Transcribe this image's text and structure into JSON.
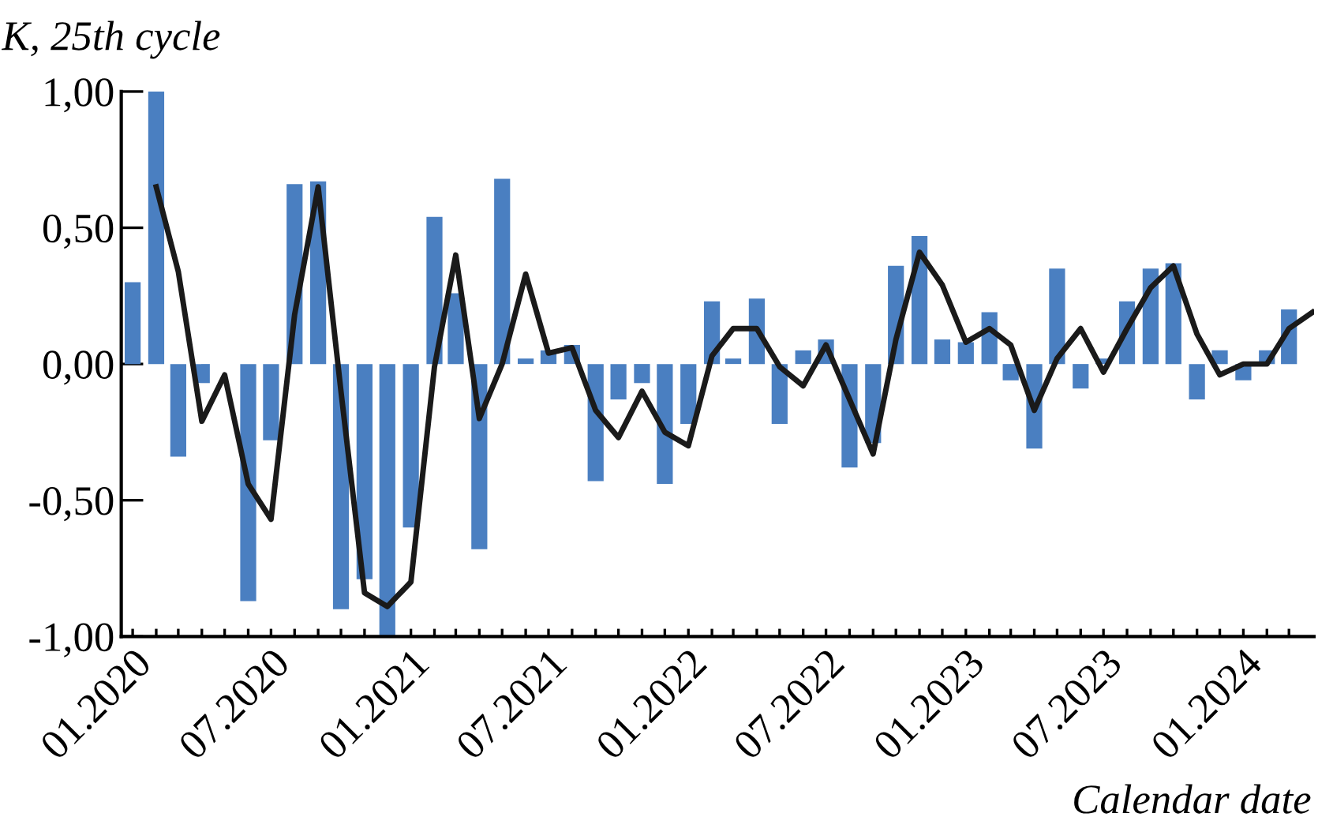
{
  "chart_data": {
    "type": "bar",
    "ylabel": "K, 25th cycle",
    "xlabel": "Calendar date",
    "x": [
      "2020-01",
      "2020-02",
      "2020-03",
      "2020-04",
      "2020-05",
      "2020-06",
      "2020-07",
      "2020-08",
      "2020-09",
      "2020-10",
      "2020-11",
      "2020-12",
      "2021-01",
      "2021-02",
      "2021-03",
      "2021-04",
      "2021-05",
      "2021-06",
      "2021-07",
      "2021-08",
      "2021-09",
      "2021-10",
      "2021-11",
      "2021-12",
      "2022-01",
      "2022-02",
      "2022-03",
      "2022-04",
      "2022-05",
      "2022-06",
      "2022-07",
      "2022-08",
      "2022-09",
      "2022-10",
      "2022-11",
      "2022-12",
      "2023-01",
      "2023-02",
      "2023-03",
      "2023-04",
      "2023-05",
      "2023-06",
      "2023-07",
      "2023-08",
      "2023-09",
      "2023-10",
      "2023-11",
      "2023-12",
      "2024-01",
      "2024-02",
      "2024-03",
      "2024-04"
    ],
    "series": [
      {
        "color": "#4a7fc1",
        "values": [
          0.3,
          1.0,
          -0.34,
          -0.07,
          0,
          -0.87,
          -0.28,
          0.66,
          0.67,
          -0.9,
          -0.79,
          -1.0,
          -0.6,
          0.54,
          0.26,
          -0.68,
          0.68,
          0.02,
          0.05,
          0.07,
          -0.43,
          -0.13,
          -0.07,
          -0.44,
          -0.22,
          0.23,
          0.02,
          0.24,
          -0.22,
          0.05,
          0.09,
          -0.38,
          -0.29,
          0.36,
          0.47,
          0.09,
          0.08,
          0.19,
          -0.06,
          -0.31,
          0.35,
          -0.09,
          0.02,
          0.23,
          0.35,
          0.37,
          -0.13,
          0.05,
          -0.06,
          0.05,
          0.2,
          null
        ]
      },
      {
        "type": "line",
        "color": "#1a1a1a",
        "values": [
          null,
          0.65,
          0.34,
          -0.21,
          -0.04,
          -0.44,
          -0.57,
          0.18,
          0.65,
          -0.1,
          -0.84,
          -0.89,
          -0.8,
          -0.01,
          0.4,
          -0.2,
          0.0,
          0.33,
          0.04,
          0.06,
          -0.17,
          -0.27,
          -0.1,
          -0.25,
          -0.3,
          0.03,
          0.13,
          0.13,
          -0.01,
          -0.08,
          0.07,
          -0.13,
          -0.33,
          0.09,
          0.41,
          0.29,
          0.08,
          0.13,
          0.07,
          -0.17,
          0.02,
          0.13,
          -0.03,
          0.13,
          0.28,
          0.36,
          0.11,
          -0.04,
          0.0,
          0.0,
          0.13,
          0.19
        ]
      }
    ],
    "xlim": [
      "2019-12-17",
      "2024-04-03"
    ],
    "xticks": [
      {
        "value": "2020-01",
        "label": "01.2020"
      },
      {
        "value": "2020-02",
        "label": null
      },
      {
        "value": "2020-03",
        "label": null
      },
      {
        "value": "2020-04",
        "label": null
      },
      {
        "value": "2020-05",
        "label": null
      },
      {
        "value": "2020-06",
        "label": null
      },
      {
        "value": "2020-07",
        "label": "07.2020"
      },
      {
        "value": "2020-08",
        "label": null
      },
      {
        "value": "2020-09",
        "label": null
      },
      {
        "value": "2020-10",
        "label": null
      },
      {
        "value": "2020-11",
        "label": null
      },
      {
        "value": "2020-12",
        "label": null
      },
      {
        "value": "2021-01",
        "label": "01.2021"
      },
      {
        "value": "2021-02",
        "label": null
      },
      {
        "value": "2021-03",
        "label": null
      },
      {
        "value": "2021-04",
        "label": null
      },
      {
        "value": "2021-05",
        "label": null
      },
      {
        "value": "2021-06",
        "label": null
      },
      {
        "value": "2021-07",
        "label": "07.2021"
      },
      {
        "value": "2021-08",
        "label": null
      },
      {
        "value": "2021-09",
        "label": null
      },
      {
        "value": "2021-10",
        "label": null
      },
      {
        "value": "2021-11",
        "label": null
      },
      {
        "value": "2021-12",
        "label": null
      },
      {
        "value": "2022-01",
        "label": "01.2022"
      },
      {
        "value": "2022-02",
        "label": null
      },
      {
        "value": "2022-03",
        "label": null
      },
      {
        "value": "2022-04",
        "label": null
      },
      {
        "value": "2022-05",
        "label": null
      },
      {
        "value": "2022-06",
        "label": null
      },
      {
        "value": "2022-07",
        "label": "07.2022"
      },
      {
        "value": "2022-08",
        "label": null
      },
      {
        "value": "2022-09",
        "label": null
      },
      {
        "value": "2022-10",
        "label": null
      },
      {
        "value": "2022-11",
        "label": null
      },
      {
        "value": "2022-12",
        "label": null
      },
      {
        "value": "2023-01",
        "label": "01.2023"
      },
      {
        "value": "2023-02",
        "label": null
      },
      {
        "value": "2023-03",
        "label": null
      },
      {
        "value": "2023-04",
        "label": null
      },
      {
        "value": "2023-05",
        "label": null
      },
      {
        "value": "2023-06",
        "label": null
      },
      {
        "value": "2023-07",
        "label": "07.2023"
      },
      {
        "value": "2023-08",
        "label": null
      },
      {
        "value": "2023-09",
        "label": null
      },
      {
        "value": "2023-10",
        "label": null
      },
      {
        "value": "2023-11",
        "label": null
      },
      {
        "value": "2023-12",
        "label": null
      },
      {
        "value": "2024-01",
        "label": "01.2024"
      },
      {
        "value": "2024-02",
        "label": null
      },
      {
        "value": "2024-03",
        "label": null
      }
    ],
    "ylim": [
      -1,
      1
    ],
    "yticks": [
      {
        "value": -1,
        "label": "-1,00"
      },
      {
        "value": -0.5,
        "label": "-0,50"
      },
      {
        "value": 0,
        "label": "0,00"
      },
      {
        "value": 0.5,
        "label": "0,50"
      },
      {
        "value": 1,
        "label": "1,00"
      }
    ],
    "grid": false,
    "legend": false
  }
}
